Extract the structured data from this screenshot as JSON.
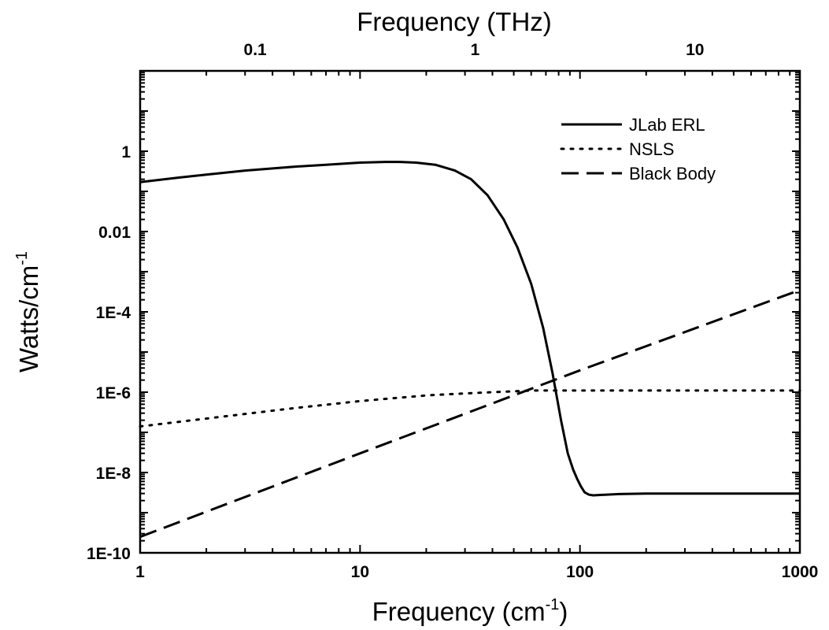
{
  "chart_data": {
    "type": "line",
    "xscale": "log",
    "yscale": "log",
    "xlabel": "Frequency (cm",
    "xlabel_sup": "-1",
    "xlabel_end": ")",
    "x2label": "Frequency (THz)",
    "ylabel": "Watts/cm",
    "ylabel_sup": "-1",
    "xlim": [
      1,
      1000
    ],
    "ylim": [
      1e-10,
      100
    ],
    "x_ticks": [
      {
        "value": 1,
        "label": "1"
      },
      {
        "value": 10,
        "label": "10"
      },
      {
        "value": 100,
        "label": "100"
      },
      {
        "value": 1000,
        "label": "1000"
      }
    ],
    "y_ticks": [
      {
        "value": 1e-10,
        "label": "1E-10"
      },
      {
        "value": 1e-08,
        "label": "1E-8"
      },
      {
        "value": 1e-06,
        "label": "1E-6"
      },
      {
        "value": 0.0001,
        "label": "1E-4"
      },
      {
        "value": 0.01,
        "label": "0.01"
      },
      {
        "value": 1,
        "label": "1"
      }
    ],
    "x2_ticks": [
      {
        "value": 0.1,
        "label": "0.1"
      },
      {
        "value": 1,
        "label": "1"
      },
      {
        "value": 10,
        "label": "10"
      }
    ],
    "x2_per_x": 0.0299792458,
    "legend_position": "top-right",
    "grid": false,
    "series": [
      {
        "name": "JLab ERL",
        "dash": "solid",
        "x": [
          1,
          1.5,
          2,
          3,
          5,
          7,
          10,
          13,
          15,
          18,
          22,
          27,
          32,
          38,
          45,
          52,
          60,
          68,
          75,
          82,
          88,
          93,
          97,
          101,
          105,
          110,
          115,
          130,
          150,
          200,
          300,
          500,
          1000
        ],
        "y": [
          0.17,
          0.22,
          0.26,
          0.33,
          0.41,
          0.46,
          0.52,
          0.54,
          0.54,
          0.52,
          0.46,
          0.33,
          0.2,
          0.08,
          0.02,
          0.004,
          0.0005,
          4e-05,
          3e-06,
          2e-07,
          3e-08,
          1.2e-08,
          7e-09,
          4.5e-09,
          3.2e-09,
          2.8e-09,
          2.7e-09,
          2.8e-09,
          2.9e-09,
          3e-09,
          3e-09,
          3e-09,
          3e-09
        ]
      },
      {
        "name": "NSLS",
        "dash": "dotted",
        "x": [
          1,
          2,
          5,
          10,
          20,
          30,
          40,
          50,
          60,
          80,
          100,
          200,
          500,
          1000
        ],
        "y": [
          1.4e-07,
          2.2e-07,
          4e-07,
          6e-07,
          8.3e-07,
          9.3e-07,
          1e-06,
          1.05e-06,
          1.1e-06,
          1.1e-06,
          1.1e-06,
          1.1e-06,
          1.1e-06,
          1.1e-06
        ]
      },
      {
        "name": "Black Body",
        "dash": "dashed",
        "x": [
          1,
          10,
          100,
          1000
        ],
        "y": [
          2.5e-10,
          3e-08,
          3.5e-06,
          0.00035
        ]
      }
    ]
  }
}
